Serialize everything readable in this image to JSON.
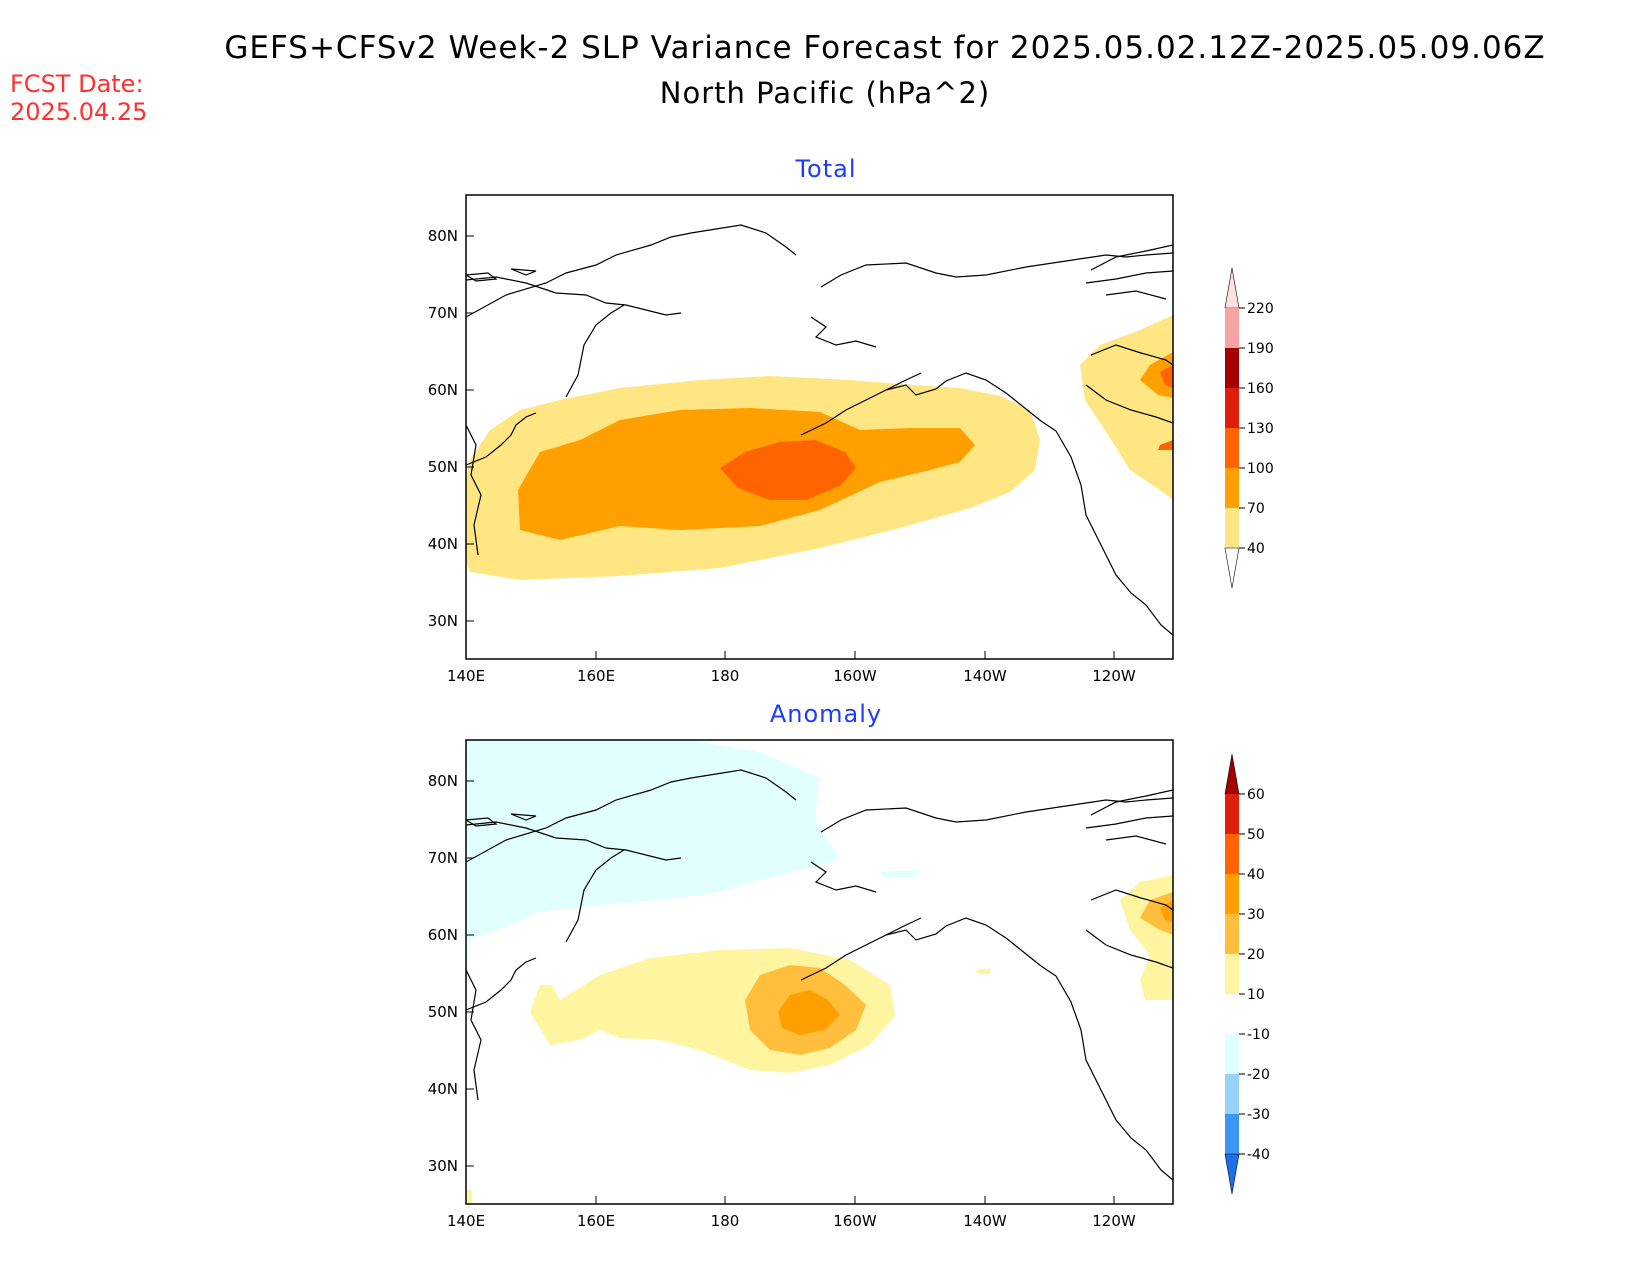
{
  "header": {
    "title_line1": "GEFS+CFSv2 Week-2 SLP Variance Forecast for 2025.05.02.12Z-2025.05.09.06Z",
    "title_line2": "North Pacific (hPa^2)",
    "fcst_label": "FCST Date:",
    "fcst_date": "2025.04.25"
  },
  "axes": {
    "lat_labels": [
      "80N",
      "70N",
      "60N",
      "50N",
      "40N",
      "30N"
    ],
    "lon_labels": [
      "140E",
      "160E",
      "180",
      "160W",
      "140W",
      "120W"
    ]
  },
  "panels": {
    "total": {
      "title": "Total",
      "colorbar": {
        "labels": [
          "220",
          "190",
          "160",
          "130",
          "100",
          "70",
          "40"
        ],
        "colors": [
          "#f5a3a3",
          "#a50000",
          "#e11e0a",
          "#ff6400",
          "#ffa000",
          "#ffe682"
        ]
      }
    },
    "anomaly": {
      "title": "Anomaly",
      "colorbar": {
        "labels": [
          "60",
          "50",
          "40",
          "30",
          "20",
          "10",
          "-10",
          "-20",
          "-30",
          "-40"
        ],
        "colors": [
          "#e11e0a",
          "#ff6400",
          "#ffa000",
          "#ffbe3c",
          "#fff5a0",
          "#ffffff",
          "#e1ffff",
          "#96d2fa",
          "#3c96f5",
          "#1e6eeb"
        ]
      }
    }
  },
  "colors": {
    "title_red": "#ff3030",
    "panel_title_blue": "#1e3cff"
  }
}
